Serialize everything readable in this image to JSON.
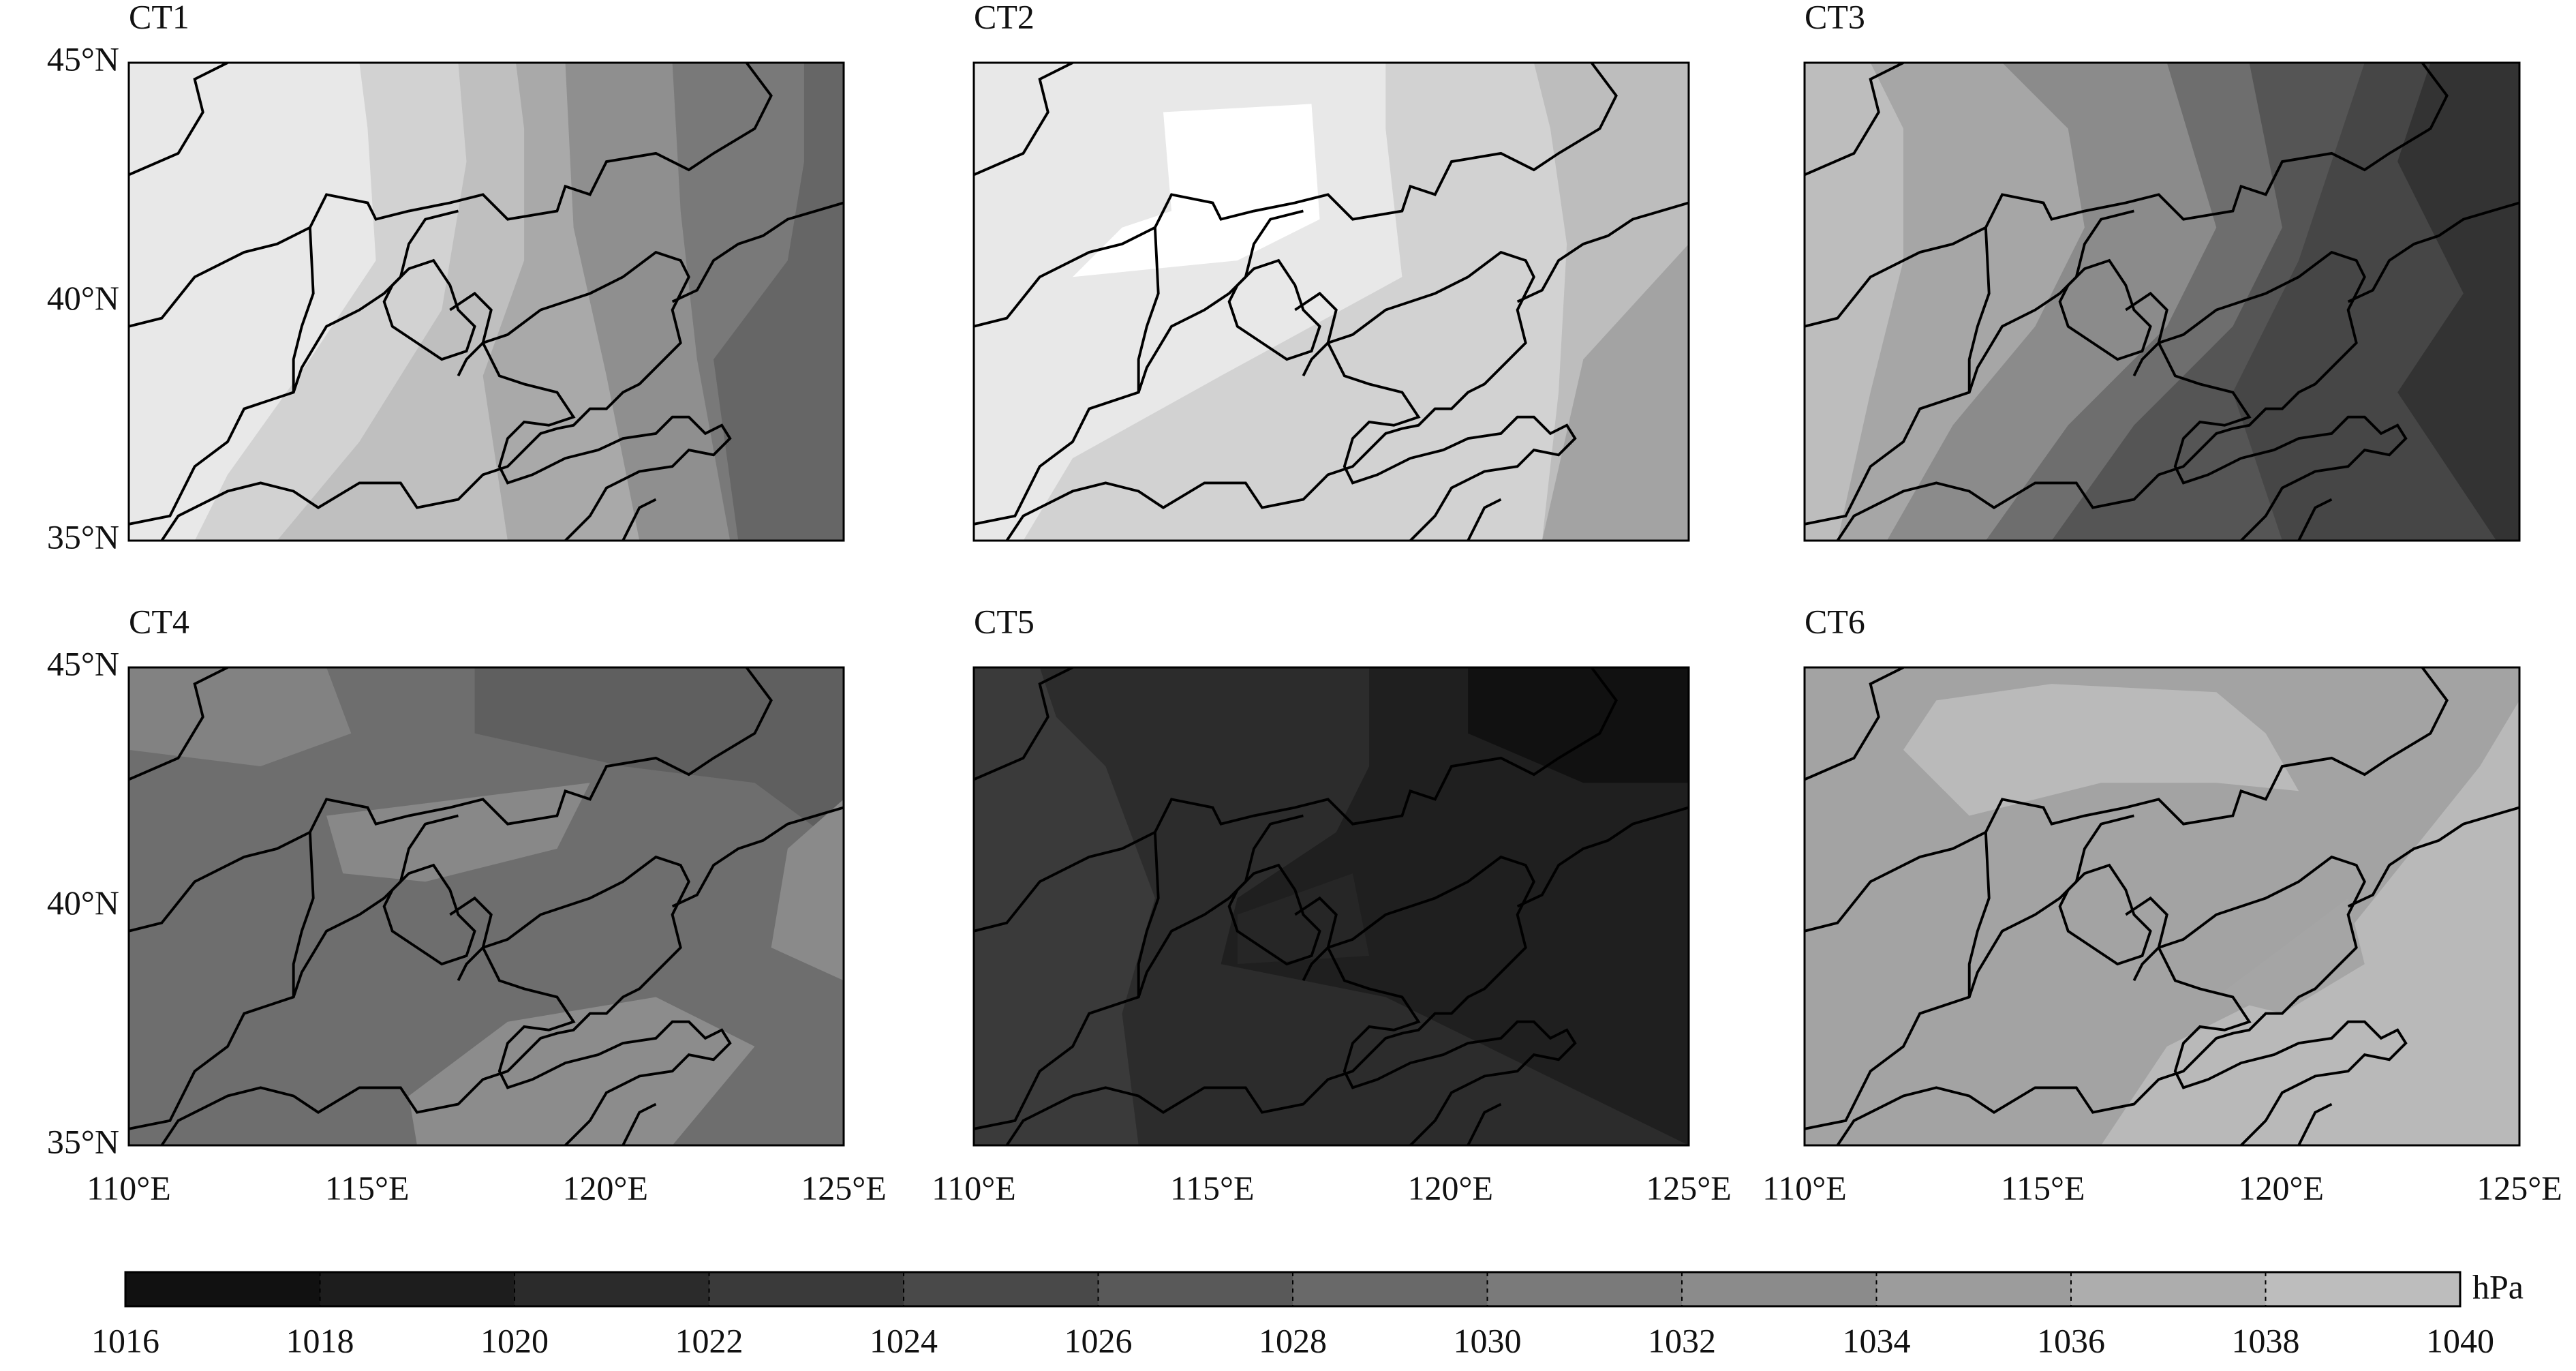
{
  "panels": [
    {
      "title": "CT1"
    },
    {
      "title": "CT2"
    },
    {
      "title": "CT3"
    },
    {
      "title": "CT4"
    },
    {
      "title": "CT5"
    },
    {
      "title": "CT6"
    }
  ],
  "lat_labels": [
    "45°N",
    "40°N",
    "35°N"
  ],
  "lon_labels": [
    "110°E",
    "115°E",
    "120°E",
    "125°E"
  ],
  "colorbar": {
    "ticks": [
      1016,
      1018,
      1020,
      1022,
      1024,
      1026,
      1028,
      1030,
      1032,
      1034,
      1036,
      1038,
      1040
    ],
    "colors": [
      "#111111",
      "#1d1d1d",
      "#2b2b2b",
      "#3a3a3a",
      "#494949",
      "#595959",
      "#696969",
      "#7a7a7a",
      "#8b8b8b",
      "#9c9c9c",
      "#adadad",
      "#bdbdbd"
    ],
    "unit": "hPa"
  }
}
